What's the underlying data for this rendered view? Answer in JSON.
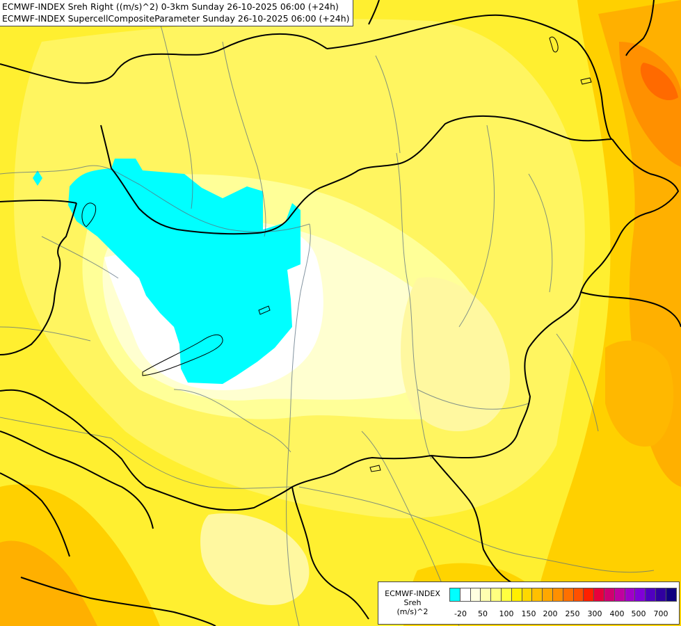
{
  "title": {
    "line1": "ECMWF-INDEX Sreh Right ((m/s)^2) 0-3km Sunday 26-10-2025 06:00 (+24h)",
    "line2": "ECMWF-INDEX SupercellCompositeParameter Sunday 26-10-2025 06:00 (+24h)"
  },
  "legend": {
    "title_line1": "ECMWF-INDEX",
    "title_line2": "Sreh",
    "title_line3": "(m/s)^2",
    "swatch_colors": [
      "#00ffff",
      "#ffffff",
      "#ffffe0",
      "#ffffb0",
      "#ffff80",
      "#ffff40",
      "#ffef00",
      "#ffd800",
      "#ffc000",
      "#ffa800",
      "#ff9000",
      "#ff7000",
      "#ff5000",
      "#ff2000",
      "#e8003c",
      "#d00070",
      "#c000a0",
      "#a000c8",
      "#8000d8",
      "#5000c0",
      "#3000a0",
      "#100080"
    ],
    "ticks": [
      "-20",
      "50",
      "100",
      "150",
      "200",
      "250",
      "300",
      "400",
      "500",
      "700"
    ]
  },
  "colors": {
    "base": "#ffef30",
    "pale": "#ffffa8",
    "very_pale": "#ffffe0",
    "white": "#ffffff",
    "cyan": "#00ffff",
    "orange_light": "#ffd000",
    "orange": "#ffb000",
    "orange_dark": "#ff8000",
    "red_orange": "#ff6000"
  }
}
